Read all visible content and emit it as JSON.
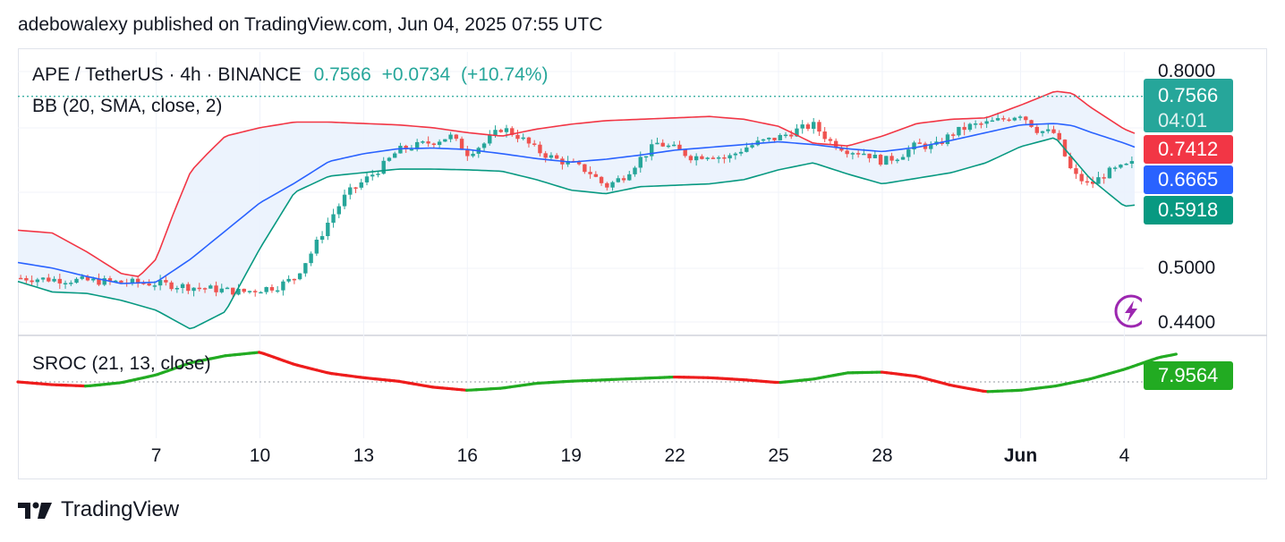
{
  "header": {
    "published": "adebowalexy published on TradingView.com, Jun 04, 2025 07:55 UTC"
  },
  "legend": {
    "symbol": "APE / TetherUS · 4h · BINANCE",
    "price": "0.7566",
    "change": "+0.0734",
    "change_pct": "(+10.74%)",
    "bb_label": "BB (20, SMA, close, 2)",
    "sroc_label": "SROC (21, 13, close)"
  },
  "tags": {
    "last_price": "0.7566",
    "countdown": "04:01",
    "bb_upper": "0.7412",
    "bb_basis": "0.6665",
    "bb_lower": "0.5918",
    "sroc_value": "7.9564"
  },
  "footer": {
    "brand": "TradingView"
  },
  "colors": {
    "up": "#26a69a",
    "down": "#ef5350",
    "bb_basis": "#2962ff",
    "bb_upper": "#f23645",
    "bb_lower": "#089981",
    "bb_fill": "#eaf2fd",
    "sroc_up": "#22ab22",
    "sroc_down": "#ee1c1c"
  },
  "icons": {
    "logo": "tradingview-logo-icon",
    "alert": "lightning-icon"
  },
  "chart_data": {
    "type": "candlestick",
    "symbol": "APE / TetherUS",
    "interval": "4h",
    "exchange": "BINANCE",
    "y_ticks": [
      "0.8000",
      "0.5000",
      "0.4400"
    ],
    "x_ticks": [
      "7",
      "10",
      "13",
      "16",
      "19",
      "22",
      "25",
      "28",
      "Jun",
      "4"
    ],
    "ylim": [
      0.42,
      0.82
    ],
    "close_path": [
      [
        0,
        0.498
      ],
      [
        4,
        0.49
      ],
      [
        6.5,
        0.478
      ],
      [
        7.5,
        0.486
      ],
      [
        8.0,
        0.498
      ],
      [
        8.5,
        0.535
      ],
      [
        9.0,
        0.58
      ],
      [
        9.5,
        0.617
      ],
      [
        10.0,
        0.636
      ],
      [
        10.5,
        0.655
      ],
      [
        11.0,
        0.68
      ],
      [
        11.5,
        0.686
      ],
      [
        12.0,
        0.692
      ],
      [
        12.5,
        0.7
      ],
      [
        13.0,
        0.676
      ],
      [
        13.5,
        0.69
      ],
      [
        14.0,
        0.712
      ],
      [
        14.5,
        0.699
      ],
      [
        15.0,
        0.68
      ],
      [
        15.5,
        0.668
      ],
      [
        16.0,
        0.66
      ],
      [
        16.5,
        0.65
      ],
      [
        17.0,
        0.628
      ],
      [
        17.5,
        0.642
      ],
      [
        18.0,
        0.668
      ],
      [
        18.5,
        0.69
      ],
      [
        19.0,
        0.682
      ],
      [
        19.5,
        0.67
      ],
      [
        20.0,
        0.674
      ],
      [
        20.5,
        0.668
      ],
      [
        21.0,
        0.683
      ],
      [
        21.5,
        0.692
      ],
      [
        22.0,
        0.698
      ],
      [
        22.5,
        0.708
      ],
      [
        23.0,
        0.716
      ],
      [
        23.5,
        0.692
      ],
      [
        24.0,
        0.68
      ],
      [
        24.5,
        0.676
      ],
      [
        25.0,
        0.664
      ],
      [
        25.5,
        0.672
      ],
      [
        26.0,
        0.688
      ],
      [
        26.5,
        0.684
      ],
      [
        27.0,
        0.703
      ],
      [
        27.5,
        0.714
      ],
      [
        28.0,
        0.718
      ],
      [
        28.5,
        0.724
      ],
      [
        29.0,
        0.732
      ],
      [
        29.5,
        0.708
      ],
      [
        30.0,
        0.704
      ],
      [
        30.5,
        0.646
      ],
      [
        31.0,
        0.63
      ],
      [
        31.5,
        0.648
      ],
      [
        32.0,
        0.656
      ],
      [
        32.5,
        0.666
      ],
      [
        33.0,
        0.676
      ],
      [
        33.5,
        0.702
      ],
      [
        34.0,
        0.712
      ],
      [
        34.5,
        0.716
      ],
      [
        35.0,
        0.74
      ],
      [
        35.25,
        0.7566
      ]
    ],
    "bb_upper": [
      [
        0,
        0.566
      ],
      [
        1,
        0.562
      ],
      [
        2,
        0.535
      ],
      [
        3,
        0.504
      ],
      [
        3.5,
        0.5
      ],
      [
        4,
        0.525
      ],
      [
        4.5,
        0.59
      ],
      [
        5,
        0.65
      ],
      [
        5.5,
        0.676
      ],
      [
        6,
        0.7
      ],
      [
        7,
        0.712
      ],
      [
        8,
        0.72
      ],
      [
        9,
        0.72
      ],
      [
        10,
        0.718
      ],
      [
        11,
        0.716
      ],
      [
        12,
        0.712
      ],
      [
        13,
        0.705
      ],
      [
        14,
        0.7
      ],
      [
        15,
        0.71
      ],
      [
        16,
        0.717
      ],
      [
        17,
        0.722
      ],
      [
        18,
        0.724
      ],
      [
        19,
        0.726
      ],
      [
        20,
        0.728
      ],
      [
        21,
        0.724
      ],
      [
        22,
        0.714
      ],
      [
        23,
        0.69
      ],
      [
        24,
        0.686
      ],
      [
        25,
        0.7
      ],
      [
        26,
        0.718
      ],
      [
        27,
        0.724
      ],
      [
        28,
        0.726
      ],
      [
        29,
        0.744
      ],
      [
        30,
        0.764
      ],
      [
        30.5,
        0.761
      ],
      [
        31,
        0.742
      ],
      [
        32,
        0.71
      ],
      [
        33,
        0.69
      ],
      [
        34,
        0.715
      ],
      [
        35,
        0.731
      ],
      [
        35.25,
        0.7412
      ]
    ],
    "bb_basis": [
      [
        0,
        0.52
      ],
      [
        1,
        0.512
      ],
      [
        2,
        0.5
      ],
      [
        3,
        0.49
      ],
      [
        4,
        0.492
      ],
      [
        5,
        0.525
      ],
      [
        6,
        0.565
      ],
      [
        7,
        0.605
      ],
      [
        8,
        0.633
      ],
      [
        9,
        0.664
      ],
      [
        10,
        0.675
      ],
      [
        11,
        0.682
      ],
      [
        12,
        0.683
      ],
      [
        13,
        0.681
      ],
      [
        14,
        0.675
      ],
      [
        15,
        0.668
      ],
      [
        16,
        0.663
      ],
      [
        17,
        0.667
      ],
      [
        18,
        0.673
      ],
      [
        19,
        0.68
      ],
      [
        20,
        0.684
      ],
      [
        21,
        0.688
      ],
      [
        22,
        0.692
      ],
      [
        23,
        0.688
      ],
      [
        24,
        0.682
      ],
      [
        25,
        0.678
      ],
      [
        26,
        0.684
      ],
      [
        27,
        0.694
      ],
      [
        28,
        0.705
      ],
      [
        29,
        0.716
      ],
      [
        30,
        0.718
      ],
      [
        30.5,
        0.715
      ],
      [
        31,
        0.706
      ],
      [
        32,
        0.69
      ],
      [
        33,
        0.671
      ],
      [
        34,
        0.662
      ],
      [
        35,
        0.676
      ],
      [
        35.25,
        0.6665
      ]
    ],
    "bb_lower": [
      [
        0,
        0.493
      ],
      [
        1,
        0.478
      ],
      [
        2,
        0.476
      ],
      [
        3,
        0.466
      ],
      [
        4,
        0.452
      ],
      [
        5,
        0.425
      ],
      [
        6,
        0.45
      ],
      [
        7,
        0.54
      ],
      [
        8,
        0.62
      ],
      [
        9,
        0.643
      ],
      [
        10,
        0.648
      ],
      [
        11,
        0.653
      ],
      [
        12,
        0.653
      ],
      [
        13,
        0.652
      ],
      [
        14,
        0.65
      ],
      [
        15,
        0.638
      ],
      [
        16,
        0.623
      ],
      [
        17,
        0.618
      ],
      [
        18,
        0.628
      ],
      [
        19,
        0.63
      ],
      [
        20,
        0.632
      ],
      [
        21,
        0.638
      ],
      [
        22,
        0.652
      ],
      [
        23,
        0.662
      ],
      [
        24,
        0.646
      ],
      [
        25,
        0.632
      ],
      [
        26,
        0.64
      ],
      [
        27,
        0.648
      ],
      [
        28,
        0.662
      ],
      [
        29,
        0.685
      ],
      [
        30,
        0.698
      ],
      [
        31,
        0.64
      ],
      [
        32,
        0.6
      ],
      [
        33,
        0.606
      ],
      [
        34,
        0.608
      ],
      [
        35,
        0.594
      ],
      [
        35.25,
        0.5918
      ]
    ],
    "sroc": [
      [
        0,
        0.0
      ],
      [
        1,
        -0.8
      ],
      [
        2,
        -1.2
      ],
      [
        3,
        -0.2
      ],
      [
        4,
        2.0
      ],
      [
        5,
        5.5
      ],
      [
        6,
        7.5
      ],
      [
        7,
        8.5
      ],
      [
        8,
        5.0
      ],
      [
        9,
        2.5
      ],
      [
        10,
        1.2
      ],
      [
        11,
        0.2
      ],
      [
        12,
        -1.5
      ],
      [
        13,
        -2.4
      ],
      [
        14,
        -1.8
      ],
      [
        15,
        -0.4
      ],
      [
        16,
        0.2
      ],
      [
        17,
        0.6
      ],
      [
        18,
        1.0
      ],
      [
        19,
        1.4
      ],
      [
        20,
        1.2
      ],
      [
        21,
        0.6
      ],
      [
        22,
        -0.2
      ],
      [
        23,
        0.8
      ],
      [
        24,
        2.6
      ],
      [
        25,
        2.8
      ],
      [
        26,
        1.6
      ],
      [
        27,
        -1.0
      ],
      [
        28,
        -2.8
      ],
      [
        29,
        -2.4
      ],
      [
        30,
        -1.2
      ],
      [
        31,
        0.8
      ],
      [
        32,
        3.6
      ],
      [
        33,
        7.0
      ],
      [
        33.5,
        7.9564
      ]
    ],
    "sroc_zero_line": 0
  }
}
